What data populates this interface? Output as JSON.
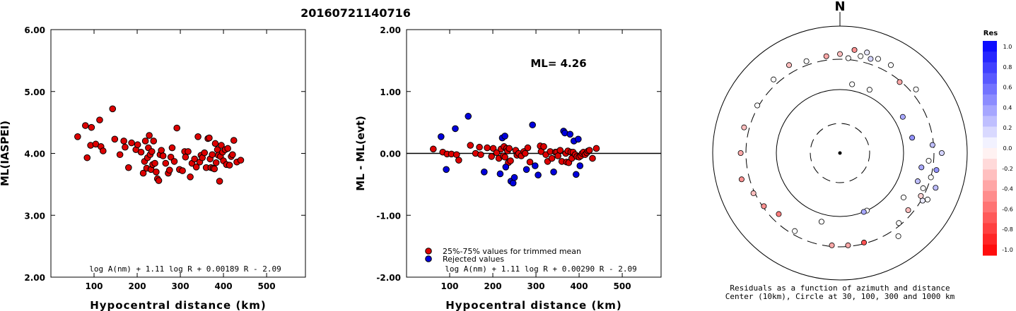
{
  "title": "20160721140716",
  "chart_data": [
    {
      "type": "scatter",
      "xlabel": "Hypocentral distance (km)",
      "ylabel": "ML(IASPEI)",
      "xlim": [
        0,
        590
      ],
      "ylim": [
        2.0,
        6.0
      ],
      "xticks": [
        100,
        200,
        300,
        400,
        500
      ],
      "yticks": [
        2.0,
        3.0,
        4.0,
        5.0,
        6.0
      ],
      "ytick_labels": [
        "2.00",
        "3.00",
        "4.00",
        "5.00",
        "6.00"
      ],
      "formula": "log A(nm) + 1.11 log R + 0.00189 R - 2.09",
      "series": [
        {
          "color": "#dd0000",
          "x": [
            62,
            80,
            84,
            92,
            94,
            104,
            113,
            116,
            121,
            143,
            148,
            160,
            169,
            172,
            180,
            187,
            197,
            201,
            209,
            214,
            217,
            219,
            222,
            224,
            226,
            228,
            230,
            232,
            234,
            236,
            238,
            241,
            244,
            247,
            250,
            253,
            256,
            260,
            266,
            272,
            275,
            278,
            281,
            286,
            292,
            298,
            305,
            310,
            312,
            318,
            323,
            327,
            333,
            337,
            341,
            345,
            348,
            351,
            356,
            360,
            364,
            367,
            369,
            371,
            374,
            376,
            379,
            381,
            383,
            386,
            388,
            391,
            393,
            395,
            398,
            400,
            404,
            407,
            410,
            414,
            418,
            421,
            424,
            431,
            440
          ],
          "y": [
            4.27,
            4.45,
            3.93,
            4.13,
            4.42,
            4.15,
            4.54,
            4.11,
            4.04,
            4.72,
            4.23,
            3.98,
            4.2,
            4.1,
            3.77,
            4.17,
            4.06,
            4.14,
            4.02,
            3.68,
            3.87,
            4.2,
            3.76,
            3.93,
            4.09,
            4.29,
            3.98,
            3.74,
            4.03,
            3.82,
            4.2,
            3.84,
            3.7,
            3.59,
            3.56,
            3.98,
            4.05,
            3.96,
            3.84,
            3.68,
            3.73,
            3.94,
            4.09,
            3.87,
            4.41,
            3.74,
            3.72,
            4.03,
            3.94,
            4.03,
            3.62,
            3.84,
            3.91,
            3.78,
            4.27,
            3.86,
            3.97,
            3.93,
            4.01,
            3.77,
            4.24,
            4.25,
            3.91,
            3.77,
            3.98,
            3.76,
            3.75,
            4.16,
            3.85,
            4.06,
            3.97,
            3.55,
            3.95,
            4.13,
            4.02,
            3.88,
            4.06,
            3.82,
            4.08,
            3.81,
            3.95,
            3.98,
            4.21,
            3.86,
            3.89
          ]
        }
      ]
    },
    {
      "type": "scatter",
      "xlabel": "Hypocentral distance (km)",
      "ylabel": "ML - ML(evt)",
      "xlim": [
        0,
        590
      ],
      "ylim": [
        -2.0,
        2.0
      ],
      "xticks": [
        100,
        200,
        300,
        400,
        500
      ],
      "yticks": [
        -2.0,
        -1.0,
        0.0,
        1.0,
        2.0
      ],
      "ytick_labels": [
        "-2.00",
        "-1.00",
        "0.00",
        "1.00",
        "2.00"
      ],
      "hline": 0,
      "annotation": "ML= 4.26",
      "formula": "log A(nm) + 1.11 log R + 0.00290 R - 2.09",
      "legend": [
        "25%-75% values for trimmed mean",
        "Rejected values"
      ],
      "series": [
        {
          "name": "25%-75% values for trimmed mean",
          "color": "#dd0000",
          "x": [
            62,
            84,
            94,
            104,
            116,
            121,
            148,
            160,
            169,
            172,
            187,
            197,
            201,
            209,
            214,
            219,
            224,
            226,
            228,
            232,
            234,
            236,
            238,
            241,
            253,
            256,
            260,
            266,
            272,
            275,
            281,
            286,
            310,
            312,
            318,
            323,
            327,
            333,
            337,
            345,
            348,
            351,
            356,
            360,
            369,
            371,
            374,
            376,
            381,
            383,
            386,
            391,
            395,
            400,
            404,
            407,
            410,
            414,
            418,
            421,
            424,
            431,
            440
          ],
          "y": [
            0.07,
            0.02,
            -0.01,
            -0.01,
            -0.02,
            -0.11,
            0.13,
            0.0,
            0.1,
            -0.02,
            0.09,
            -0.05,
            0.08,
            0.01,
            -0.08,
            0.07,
            -0.04,
            0.11,
            -0.06,
            0.08,
            0.04,
            -0.15,
            0.08,
            -0.12,
            0.05,
            -0.03,
            0.0,
            -0.04,
            0.03,
            0.0,
            0.09,
            -0.14,
            0.12,
            0.03,
            0.11,
            -0.02,
            -0.13,
            0.03,
            -0.08,
            0.02,
            0.02,
            -0.04,
            0.05,
            -0.13,
            0.0,
            -0.14,
            0.04,
            -0.15,
            0.02,
            -0.08,
            0.02,
            -0.02,
            -0.05,
            -0.06,
            -0.04,
            0.0,
            0.02,
            -0.02,
            0.01,
            0.04,
            0.05,
            -0.08,
            0.08
          ]
        },
        {
          "name": "Rejected values",
          "color": "#0000dd",
          "x": [
            80,
            92,
            113,
            143,
            180,
            217,
            222,
            228,
            230,
            242,
            247,
            250,
            278,
            292,
            298,
            305,
            341,
            364,
            367,
            379,
            388,
            393,
            398,
            402
          ],
          "y": [
            0.27,
            -0.26,
            0.4,
            0.6,
            -0.3,
            -0.33,
            0.25,
            0.28,
            -0.22,
            -0.45,
            -0.48,
            -0.39,
            -0.26,
            0.46,
            -0.2,
            -0.35,
            -0.3,
            0.36,
            0.33,
            0.31,
            0.2,
            -0.34,
            0.23,
            -0.2
          ]
        }
      ]
    },
    {
      "type": "scatter",
      "subtype": "polar",
      "north_label": "N",
      "caption_line1": "Residuals as a function of azimuth and distance",
      "caption_line2": "Center (10km), Circle at 30, 100, 300 and 1000 km",
      "colorbar_title": "Res",
      "colorbar_ticks": [
        "1.0",
        "0.8",
        "0.6",
        "0.4",
        "0.2",
        "0.0",
        "-0.2",
        "-0.4",
        "-0.6",
        "-0.8",
        "-1.0"
      ],
      "rings_km": [
        30,
        100,
        300,
        1000
      ],
      "points": [
        {
          "az": 10,
          "d": 0.55,
          "res": 0.0
        },
        {
          "az": 25,
          "d": 0.55,
          "res": 0.0
        },
        {
          "az": 60,
          "d": 0.57,
          "res": 0.4
        },
        {
          "az": 78,
          "d": 0.58,
          "res": 0.5
        },
        {
          "az": 85,
          "d": 0.73,
          "res": 0.3
        },
        {
          "az": 90,
          "d": 0.8,
          "res": 0.2
        },
        {
          "az": 95,
          "d": 0.7,
          "res": 0.0
        },
        {
          "az": 100,
          "d": 0.77,
          "res": 0.5
        },
        {
          "az": 105,
          "d": 0.74,
          "res": 0.0
        },
        {
          "az": 110,
          "d": 0.8,
          "res": 0.3
        },
        {
          "az": 113,
          "d": 0.71,
          "res": 0.0
        },
        {
          "az": 120,
          "d": 0.75,
          "res": 0.1
        },
        {
          "az": 125,
          "d": 0.61,
          "res": 0.0
        },
        {
          "az": 130,
          "d": 0.7,
          "res": -0.3
        },
        {
          "az": 140,
          "d": 0.72,
          "res": 0.0
        },
        {
          "az": 155,
          "d": 0.5,
          "res": 0.0
        },
        {
          "az": 158,
          "d": 0.5,
          "res": 0.4
        },
        {
          "az": 165,
          "d": 0.73,
          "res": -0.8
        },
        {
          "az": 175,
          "d": 0.73,
          "res": -0.4
        },
        {
          "az": 185,
          "d": 0.73,
          "res": -0.4
        },
        {
          "az": 195,
          "d": 0.56,
          "res": 0.0
        },
        {
          "az": 210,
          "d": 0.71,
          "res": 0.0
        },
        {
          "az": 225,
          "d": 0.68,
          "res": -0.6
        },
        {
          "az": 235,
          "d": 0.73,
          "res": -0.5
        },
        {
          "az": 245,
          "d": 0.75,
          "res": -0.3
        },
        {
          "az": 255,
          "d": 0.8,
          "res": -0.5
        },
        {
          "az": 270,
          "d": 0.78,
          "res": -0.4
        },
        {
          "az": 285,
          "d": 0.78,
          "res": -0.3
        },
        {
          "az": 300,
          "d": 0.75,
          "res": 0.0
        },
        {
          "az": 318,
          "d": 0.78,
          "res": 0.0
        },
        {
          "az": 330,
          "d": 0.8,
          "res": -0.3
        },
        {
          "az": 340,
          "d": 0.77,
          "res": 0.0
        },
        {
          "az": 352,
          "d": 0.77,
          "res": -0.4
        },
        {
          "az": 5,
          "d": 0.75,
          "res": 0.0
        },
        {
          "az": 12,
          "d": 0.78,
          "res": 0.0
        },
        {
          "az": 18,
          "d": 0.78,
          "res": 0.2
        },
        {
          "az": 22,
          "d": 0.8,
          "res": 0.0
        },
        {
          "az": 30,
          "d": 0.8,
          "res": 0.0
        },
        {
          "az": 40,
          "d": 0.73,
          "res": -0.4
        },
        {
          "az": 50,
          "d": 0.78,
          "res": 0.0
        },
        {
          "az": 100,
          "d": 0.65,
          "res": 0.4
        },
        {
          "az": 110,
          "d": 0.65,
          "res": 0.3
        },
        {
          "az": 0,
          "d": 0.78,
          "res": -0.3
        },
        {
          "az": 15,
          "d": 0.82,
          "res": 0.1
        },
        {
          "az": 8,
          "d": 0.82,
          "res": -0.5
        },
        {
          "az": 118,
          "d": 0.78,
          "res": 0.0
        },
        {
          "az": 118,
          "d": 0.72,
          "res": -0.2
        },
        {
          "az": 145,
          "d": 0.8,
          "res": 0.0
        }
      ]
    }
  ]
}
